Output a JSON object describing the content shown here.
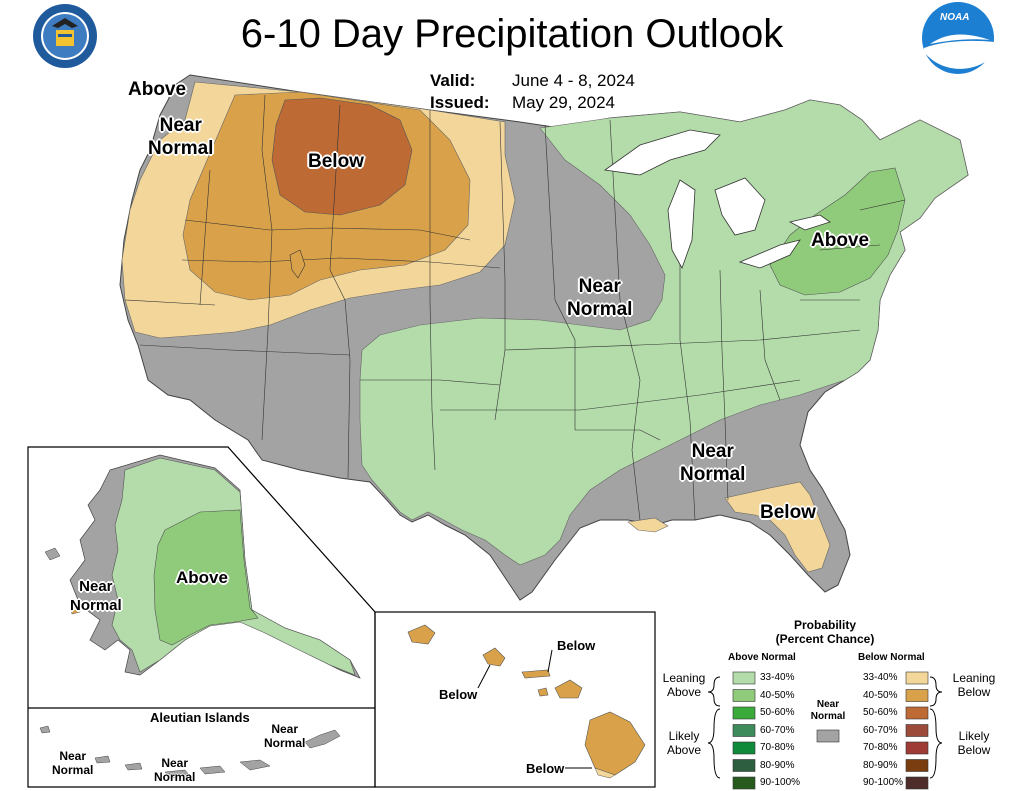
{
  "header": {
    "title": "6-10 Day Precipitation Outlook",
    "valid_label": "Valid:",
    "valid_value": "June 4 - 8, 2024",
    "issued_label": "Issued:",
    "issued_value": "May 29, 2024"
  },
  "logos": {
    "left": "US Department of Commerce seal",
    "right_text": "NOAA"
  },
  "map_labels": {
    "nw_above": "Above",
    "nw_near": "Near",
    "nw_normal": "Normal",
    "north_below": "Below",
    "ne_above": "Above",
    "mid_near": "Near",
    "mid_normal": "Normal",
    "se_near": "Near",
    "se_normal": "Normal",
    "fl_below": "Below",
    "ak_above": "Above",
    "ak_near": "Near",
    "ak_normal": "Normal",
    "aleutian_title": "Aleutian Islands",
    "al_near1": "Near",
    "al_normal1": "Normal",
    "al_near2": "Near",
    "al_normal2": "Normal",
    "al_near3": "Near",
    "al_normal3": "Normal",
    "hi_below1": "Below",
    "hi_below2": "Below",
    "hi_below3": "Below"
  },
  "legend": {
    "title_line1": "Probability",
    "title_line2": "(Percent Chance)",
    "above_header": "Above Normal",
    "below_header": "Below Normal",
    "near_line1": "Near",
    "near_line2": "Normal",
    "leaning_above_1": "Leaning",
    "leaning_above_2": "Above",
    "likely_above_1": "Likely",
    "likely_above_2": "Above",
    "leaning_below_1": "Leaning",
    "leaning_below_2": "Below",
    "likely_below_1": "Likely",
    "likely_below_2": "Below",
    "above_items": [
      {
        "label": "33-40%",
        "color": "#b3dcaa"
      },
      {
        "label": "40-50%",
        "color": "#8fcb7a"
      },
      {
        "label": "50-60%",
        "color": "#3aaa3a"
      },
      {
        "label": "60-70%",
        "color": "#3d8a5a"
      },
      {
        "label": "70-80%",
        "color": "#0f8a3a"
      },
      {
        "label": "80-90%",
        "color": "#2e5e40"
      },
      {
        "label": "90-100%",
        "color": "#285a1e"
      }
    ],
    "below_items": [
      {
        "label": "33-40%",
        "color": "#f3d79a"
      },
      {
        "label": "40-50%",
        "color": "#d9a24a"
      },
      {
        "label": "50-60%",
        "color": "#bd6a35"
      },
      {
        "label": "60-70%",
        "color": "#9c4a3a"
      },
      {
        "label": "70-80%",
        "color": "#9e3b35"
      },
      {
        "label": "80-90%",
        "color": "#7a3d10"
      },
      {
        "label": "90-100%",
        "color": "#4e2c2a"
      }
    ],
    "near_color": "#a3a3a3"
  },
  "colors": {
    "above_light": "#b3dcaa",
    "above_mid": "#8fcb7a",
    "below_light": "#f3d79a",
    "below_mid": "#d9a24a",
    "below_dark": "#bd6a35",
    "near": "#a3a3a3",
    "noaa_blue": "#1d7fd1",
    "doc_blue": "#1f5a9c"
  }
}
